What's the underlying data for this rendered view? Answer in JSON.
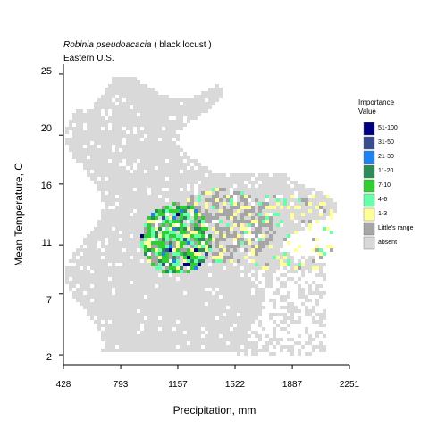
{
  "chart_data": {
    "type": "heatmap",
    "title": "Robinia pseudoacacia",
    "title_common": "( black locust )",
    "subtitle": "Eastern U.S.",
    "xlabel": "Precipitation, mm",
    "ylabel": "Mean Temperature, C",
    "xlim": [
      428,
      2251
    ],
    "ylim": [
      1.2,
      25.8
    ],
    "x_ticks": [
      "428",
      "793",
      "1157",
      "1522",
      "1887",
      "2251"
    ],
    "y_ticks": [
      "2",
      "7",
      "11",
      "16",
      "20",
      "25"
    ],
    "grid": false,
    "legend_position": "right",
    "legend_title": [
      "Importance",
      "Value"
    ],
    "legend": [
      {
        "label": "51-100",
        "color": "#00007f"
      },
      {
        "label": "31-50",
        "color": "#3a4d8f"
      },
      {
        "label": "21-30",
        "color": "#1e82f0"
      },
      {
        "label": "11-20",
        "color": "#2e8b57"
      },
      {
        "label": "7-10",
        "color": "#32cd32"
      },
      {
        "label": "4-6",
        "color": "#66ffaa"
      },
      {
        "label": "1-3",
        "color": "#ffff99"
      },
      {
        "label": "Little's range",
        "color": "#a6a6a6"
      },
      {
        "label": "absent",
        "color": "#d9d9d9"
      }
    ],
    "presence_center": {
      "precipitation": 1150,
      "temperature": 11.5
    },
    "range_center": {
      "precipitation": 1440,
      "temperature": 12.5
    }
  }
}
